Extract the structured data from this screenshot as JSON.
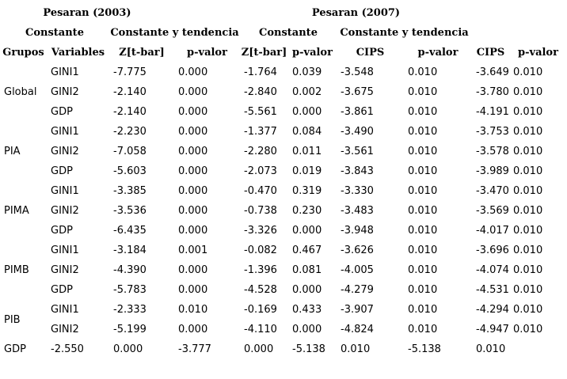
{
  "colors": {
    "background": "#ffffff",
    "text": "#000000"
  },
  "table": {
    "top_headers": [
      {
        "label": "Pesaran (2003)"
      },
      {
        "label": "Pesaran (2007)"
      }
    ],
    "subheaders": [
      "Constante",
      "Constante y tendencia",
      "Constante",
      "Constante y tendencia"
    ],
    "columns": [
      "Grupos",
      "Variables",
      "Z[t-bar]",
      "p-valor",
      "Z[t-bar]",
      "p-valor",
      "CIPS",
      "p-valor",
      "CIPS",
      "p-valor"
    ],
    "groups": [
      {
        "label": "Global",
        "rows": [
          {
            "variable": "GINI1",
            "values": [
              "-7.775",
              "0.000",
              "-1.764",
              "0.039",
              "-3.548",
              "0.010",
              "-3.649",
              "0.010"
            ]
          },
          {
            "variable": "GINI2",
            "values": [
              "-2.140",
              "0.000",
              "-2.840",
              "0.002",
              "-3.675",
              "0.010",
              "-3.780",
              "0.010"
            ]
          },
          {
            "variable": "GDP",
            "values": [
              "-2.140",
              "0.000",
              "-5.561",
              "0.000",
              "-3.861",
              "0.010",
              "-4.191",
              "0.010"
            ]
          }
        ]
      },
      {
        "label": "PIA",
        "rows": [
          {
            "variable": "GINI1",
            "values": [
              "-2.230",
              "0.000",
              "-1.377",
              "0.084",
              "-3.490",
              "0.010",
              "-3.753",
              "0.010"
            ]
          },
          {
            "variable": "GINI2",
            "values": [
              "-7.058",
              "0.000",
              "-2.280",
              "0.011",
              "-3.561",
              "0.010",
              "-3.578",
              "0.010"
            ]
          },
          {
            "variable": "GDP",
            "values": [
              "-5.603",
              "0.000",
              "-2.073",
              "0.019",
              "-3.843",
              "0.010",
              "-3.989",
              "0.010"
            ]
          }
        ]
      },
      {
        "label": "PIMA",
        "rows": [
          {
            "variable": "GINI1",
            "values": [
              "-3.385",
              "0.000",
              "-0.470",
              "0.319",
              "-3.330",
              "0.010",
              "-3.470",
              "0.010"
            ]
          },
          {
            "variable": "GINI2",
            "values": [
              "-3.536",
              "0.000",
              "-0.738",
              "0.230",
              "-3.483",
              "0.010",
              "-3.569",
              "0.010"
            ]
          },
          {
            "variable": "GDP",
            "values": [
              "-6.435",
              "0.000",
              "-3.326",
              "0.000",
              "-3.948",
              "0.010",
              "-4.017",
              "0.010"
            ]
          }
        ]
      },
      {
        "label": "PIMB",
        "rows": [
          {
            "variable": "GINI1",
            "values": [
              "-3.184",
              "0.001",
              "-0.082",
              "0.467",
              "-3.626",
              "0.010",
              "-3.696",
              "0.010"
            ]
          },
          {
            "variable": "GINI2",
            "values": [
              "-4.390",
              "0.000",
              "-1.396",
              "0.081",
              "-4.005",
              "0.010",
              "-4.074",
              "0.010"
            ]
          },
          {
            "variable": "GDP",
            "values": [
              "-5.783",
              "0.000",
              "-4.528",
              "0.000",
              "-4.279",
              "0.010",
              "-4.531",
              "0.010"
            ]
          }
        ]
      },
      {
        "label": "PIB",
        "rows": [
          {
            "variable": "GINI1",
            "values": [
              "-2.333",
              "0.010",
              "-0.169",
              "0.433",
              "-3.907",
              "0.010",
              "-4.294",
              "0.010"
            ]
          },
          {
            "variable": "GINI2",
            "values": [
              "-5.199",
              "0.000",
              "-4.110",
              "0.000",
              "-4.824",
              "0.010",
              "-4.947",
              "0.010"
            ]
          }
        ]
      },
      {
        "label": "GDP",
        "rows": [
          {
            "variable": "-2.550",
            "values": [
              "0.000",
              "-3.777",
              "0.000",
              "-5.138",
              "0.010",
              "-5.138",
              "0.010",
              ""
            ]
          }
        ]
      }
    ]
  }
}
